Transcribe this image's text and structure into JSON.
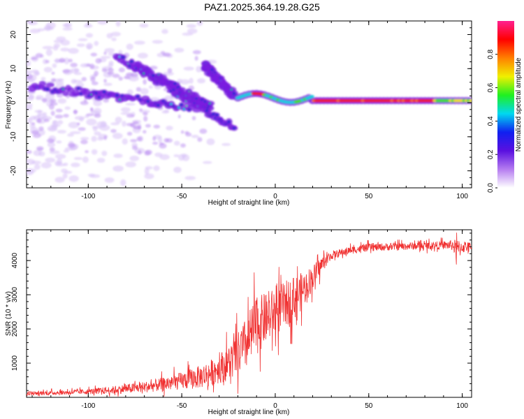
{
  "title": "PAZ1.2025.364.19.28.G25",
  "colors": {
    "snr_line": "#f03030",
    "spectrum_purple": "#7a1fe0",
    "spectrum_light": "#d9c2f7",
    "spectrum_blue": "#1a2ad0",
    "spectrum_cyan": "#10d0e0",
    "spectrum_green": "#40e020",
    "spectrum_yellow": "#f0e000",
    "spectrum_red": "#f02020",
    "colorbar_stops": [
      "#ffffff",
      "#b57cf0",
      "#5a10e0",
      "#1020f0",
      "#00d8f0",
      "#20f020",
      "#f0f000",
      "#ff8000",
      "#ff0000",
      "#ff2090"
    ]
  },
  "chart_data": [
    {
      "type": "heatmap",
      "title": "",
      "xlabel": "Height of straight line (km)",
      "ylabel": "Frequency (Hz)",
      "xlim": [
        -133,
        105
      ],
      "ylim": [
        -25,
        24
      ],
      "xticks": [
        -100,
        -50,
        0,
        50,
        100
      ],
      "xtick_labels": [
        "-100",
        "-50",
        "0",
        "50",
        "100"
      ],
      "yticks": [
        -20,
        -10,
        0,
        10,
        20
      ],
      "ytick_labels": [
        "-20",
        "-10",
        "0",
        "10",
        "20"
      ],
      "colorbar": {
        "label": "Normalized spectral amplitude",
        "range": [
          0,
          1
        ],
        "ticks": [
          0.0,
          0.2,
          0.4,
          0.6,
          0.8
        ],
        "tick_labels": [
          "0.0",
          "0.2",
          "0.4",
          "0.6",
          "0.8"
        ]
      },
      "features": [
        {
          "name": "main-tone",
          "x": [
            -20,
            105
          ],
          "freq": 0.6,
          "amp": 0.9
        },
        {
          "name": "band-a",
          "x": [
            -130,
            -35
          ],
          "freq": [
            5,
            -2
          ],
          "amp": 0.25
        },
        {
          "name": "band-b",
          "x": [
            -85,
            -22
          ],
          "freq": [
            14,
            -7
          ],
          "amp": 0.2
        },
        {
          "name": "band-c",
          "x": [
            -75,
            -35
          ],
          "freq": [
            11,
            -1
          ],
          "amp": 0.2
        },
        {
          "name": "band-d",
          "x": [
            -38,
            -22
          ],
          "freq": [
            11,
            2
          ],
          "amp": 0.2
        }
      ]
    },
    {
      "type": "line",
      "title": "",
      "xlabel": "Height of straight line (km)",
      "ylabel": "SNR (10 * v/v)",
      "xlim": [
        -133,
        105
      ],
      "ylim": [
        0,
        4900
      ],
      "xticks": [
        -100,
        -50,
        0,
        50,
        100
      ],
      "xtick_labels": [
        "-100",
        "-50",
        "0",
        "50",
        "100"
      ],
      "yticks": [
        1000,
        2000,
        3000,
        4000
      ],
      "ytick_labels": [
        "1000",
        "2000",
        "3000",
        "4000"
      ],
      "series": [
        {
          "name": "SNR",
          "x": [
            -133,
            -120,
            -110,
            -100,
            -90,
            -80,
            -70,
            -60,
            -50,
            -45,
            -40,
            -35,
            -30,
            -25,
            -20,
            -15,
            -12,
            -10,
            -5,
            0,
            5,
            10,
            15,
            20,
            25,
            30,
            40,
            50,
            60,
            70,
            80,
            90,
            95,
            97,
            100,
            105
          ],
          "mean": [
            120,
            130,
            150,
            170,
            200,
            250,
            300,
            380,
            480,
            540,
            600,
            700,
            850,
            1000,
            1250,
            1600,
            1900,
            2100,
            2300,
            2500,
            2700,
            2900,
            3150,
            3500,
            3900,
            4150,
            4300,
            4380,
            4400,
            4420,
            4430,
            4450,
            4450,
            4300,
            4400,
            4420
          ],
          "spread": [
            80,
            80,
            90,
            100,
            130,
            170,
            200,
            250,
            320,
            380,
            420,
            480,
            550,
            650,
            800,
            1000,
            1100,
            1100,
            900,
            900,
            850,
            800,
            650,
            450,
            300,
            150,
            140,
            140,
            140,
            140,
            140,
            150,
            200,
            400,
            250,
            120
          ]
        }
      ]
    }
  ]
}
